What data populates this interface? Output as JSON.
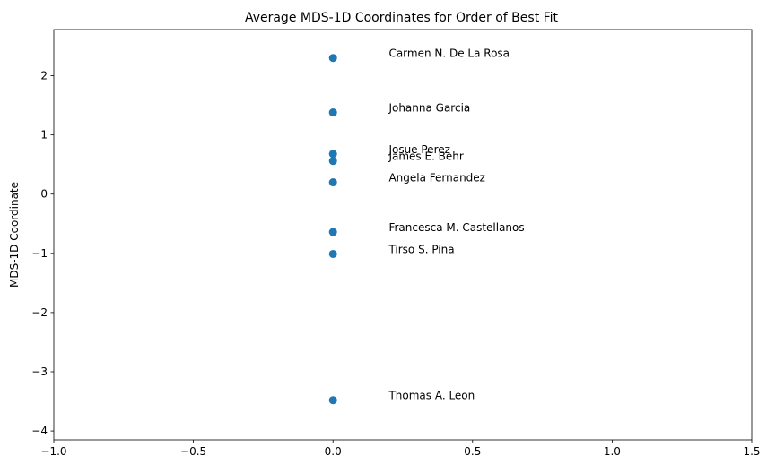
{
  "chart_data": {
    "type": "scatter",
    "title": "Average MDS-1D Coordinates for Order of Best Fit",
    "xlabel": "",
    "ylabel": "MDS-1D Coordinate",
    "xlim": [
      -1.0,
      1.5
    ],
    "ylim": [
      -4.15,
      2.78
    ],
    "x_ticks": [
      -1.0,
      -0.5,
      0.0,
      0.5,
      1.0,
      1.5
    ],
    "x_tick_labels": [
      "−1.0",
      "−0.5",
      "0.0",
      "0.5",
      "1.0",
      "1.5"
    ],
    "y_ticks": [
      -4,
      -3,
      -2,
      -1,
      0,
      1,
      2
    ],
    "y_tick_labels": [
      "−4",
      "−3",
      "−2",
      "−1",
      "0",
      "1",
      "2"
    ],
    "grid": false,
    "label_offset_x": 0.2,
    "series": [
      {
        "name": "MDS-1D",
        "color": "#1f77b4",
        "points": [
          {
            "label": "Carmen N. De La Rosa",
            "x": 0.0,
            "y": 2.3
          },
          {
            "label": "Johanna Garcia",
            "x": 0.0,
            "y": 1.38
          },
          {
            "label": "Josue Perez",
            "x": 0.0,
            "y": 0.68
          },
          {
            "label": "James E. Behr",
            "x": 0.0,
            "y": 0.56
          },
          {
            "label": "Angela Fernandez",
            "x": 0.0,
            "y": 0.2
          },
          {
            "label": "Francesca M. Castellanos",
            "x": 0.0,
            "y": -0.64
          },
          {
            "label": "Tirso S. Pina",
            "x": 0.0,
            "y": -1.01
          },
          {
            "label": "Thomas A. Leon",
            "x": 0.0,
            "y": -3.48
          }
        ]
      }
    ]
  }
}
